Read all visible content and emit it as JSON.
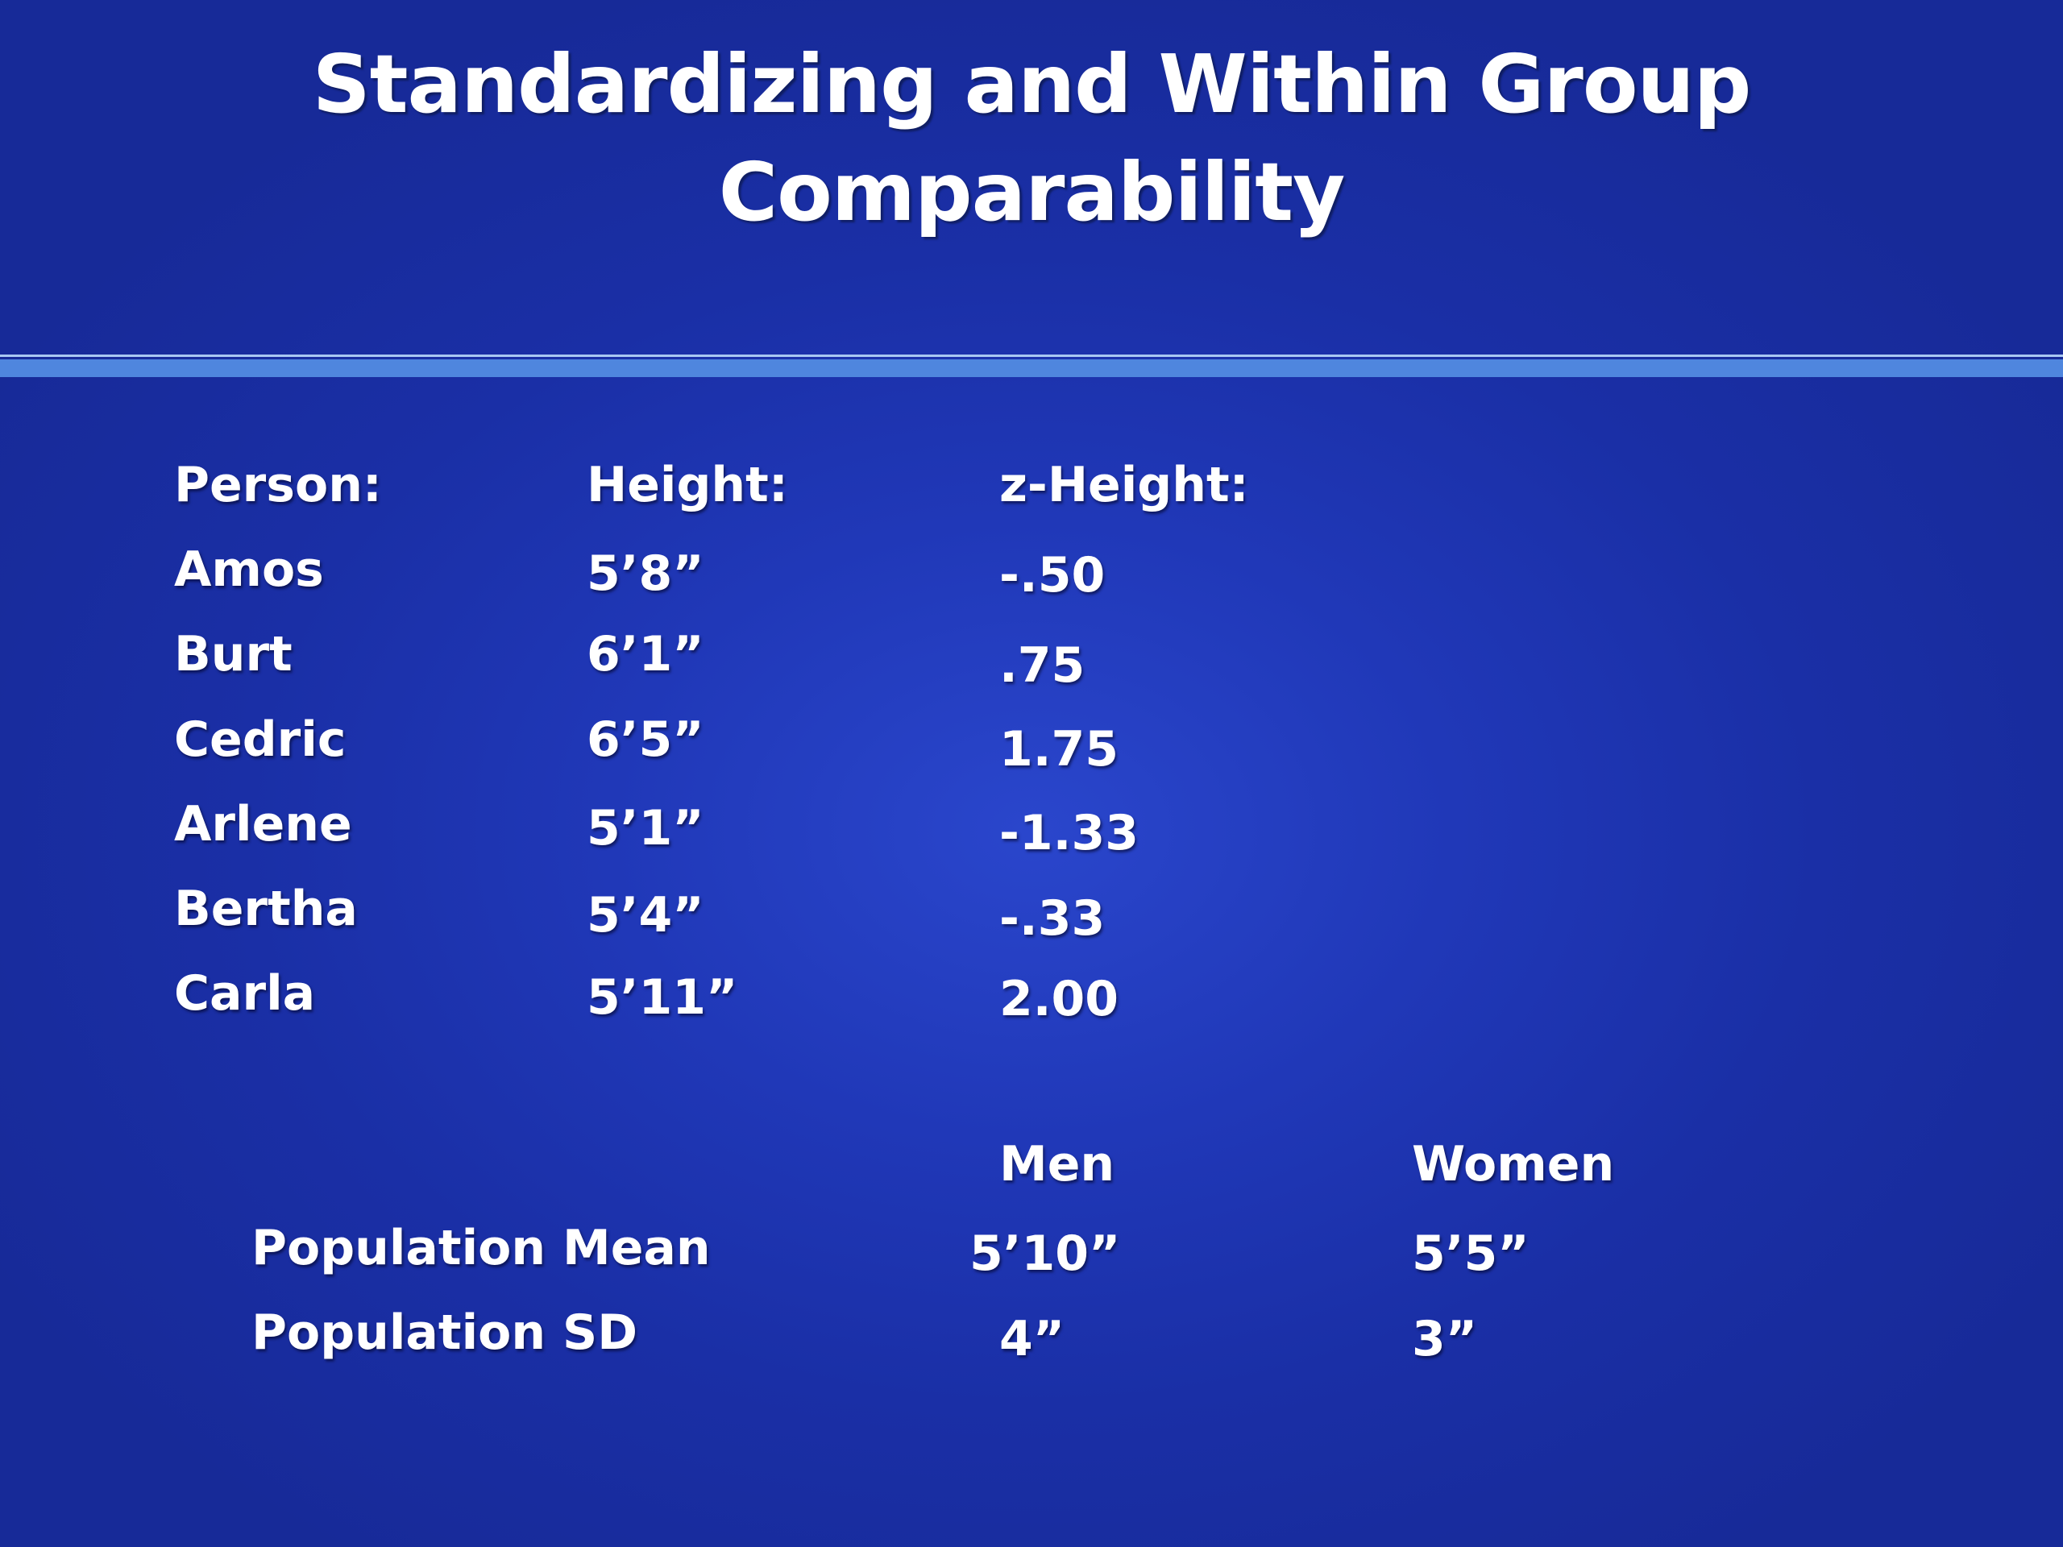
{
  "slide": {
    "title_line1": "Standardizing and Within Group",
    "title_line2": "Comparability"
  },
  "table": {
    "headers": [
      "Person:",
      "Height:",
      "z-Height:"
    ],
    "rows": [
      {
        "person": "Amos",
        "height": "5’8”",
        "z": "-.50"
      },
      {
        "person": "Burt",
        "height": "6’1”",
        "z": ".75"
      },
      {
        "person": "Cedric",
        "height": "6’5”",
        "z": "1.75"
      },
      {
        "person": "Arlene",
        "height": "5’1”",
        "z": "-1.33"
      },
      {
        "person": "Bertha",
        "height": "5’4”",
        "z": "-.33"
      },
      {
        "person": "Carla",
        "height": "5’11”",
        "z": "2.00"
      }
    ]
  },
  "population": {
    "col_men": "Men",
    "col_women": "Women",
    "mean": {
      "label": "Population Mean",
      "men": "5’10”",
      "women": "5’5”"
    },
    "sd": {
      "label": "Population SD",
      "men": "4”",
      "women": "3”"
    }
  },
  "colors": {
    "background": "#2038b8",
    "rule_light": "#a9c8f2",
    "rule_band": "#4f86de",
    "text": "#ffffff"
  }
}
